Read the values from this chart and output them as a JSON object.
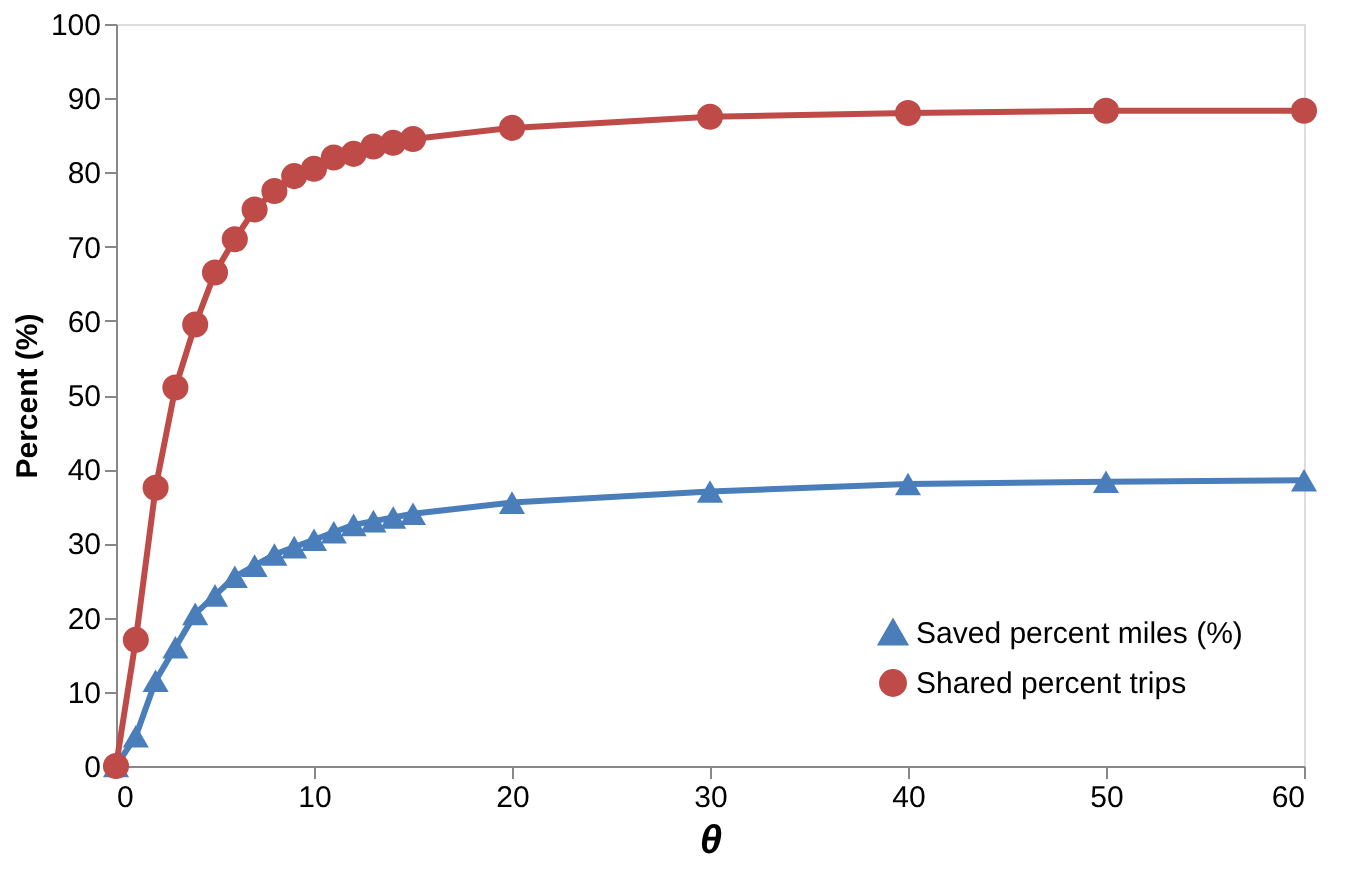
{
  "chart_data": {
    "type": "line",
    "xlabel": "θ",
    "ylabel": "Percent (%)",
    "x": [
      0,
      1,
      2,
      3,
      4,
      5,
      6,
      7,
      8,
      9,
      10,
      11,
      12,
      13,
      14,
      15,
      20,
      30,
      40,
      50,
      60
    ],
    "series": [
      {
        "name": "Saved percent miles (%)",
        "color": "#4a7ebb",
        "marker": "triangle",
        "values": [
          0,
          4,
          11.5,
          16,
          20.5,
          23,
          25.5,
          27,
          28.5,
          29.5,
          30.5,
          31.5,
          32.5,
          33,
          33.5,
          34,
          35.5,
          37,
          38,
          38.3,
          38.5
        ]
      },
      {
        "name": "Shared percent trips",
        "color": "#be4b48",
        "marker": "circle",
        "values": [
          0,
          17,
          37.5,
          51,
          59.5,
          66.5,
          71,
          75,
          77.5,
          79.5,
          80.5,
          82,
          82.5,
          83.5,
          84,
          84.5,
          86,
          87.5,
          88,
          88.3,
          88.3
        ]
      }
    ],
    "xlim": [
      0,
      60
    ],
    "xticks": [
      0,
      10,
      20,
      30,
      40,
      50,
      60
    ],
    "ylim": [
      0,
      100
    ],
    "yticks": [
      0,
      10,
      20,
      30,
      40,
      50,
      60,
      70,
      80,
      90,
      100
    ],
    "grid": false,
    "legend": "bottom right",
    "line_style": "solid"
  }
}
